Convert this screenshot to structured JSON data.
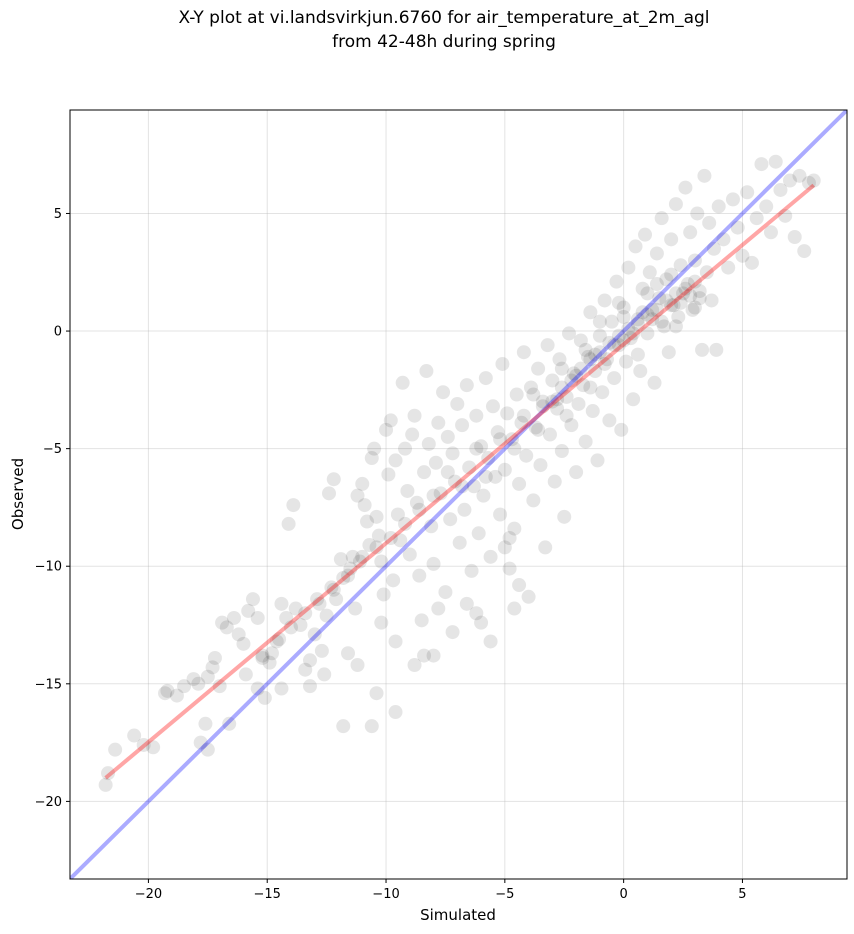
{
  "title_line1": "X-Y plot at vi.landsvirkjun.6760 for air_temperature_at_2m_agl",
  "title_line2": "from 42-48h during spring",
  "chart_data": {
    "type": "scatter",
    "title": "X-Y plot at vi.landsvirkjun.6760 for air_temperature_at_2m_agl from 42-48h during spring",
    "xlabel": "Simulated",
    "ylabel": "Observed",
    "xlim": [
      -23.3,
      9.4
    ],
    "ylim": [
      -23.3,
      9.4
    ],
    "xticks": [
      -20,
      -15,
      -10,
      -5,
      0,
      5
    ],
    "yticks": [
      -20,
      -15,
      -10,
      -5,
      0,
      5
    ],
    "tick_labels": [
      "−20",
      "−15",
      "−10",
      "−5",
      "0",
      "5"
    ],
    "grid": true,
    "point_color": "#000000",
    "point_alpha": 0.1,
    "reference_line": {
      "color": "#0000ff",
      "x": [
        -23.3,
        9.4
      ],
      "y": [
        -23.3,
        9.4
      ]
    },
    "fit_line": {
      "color": "#ff0000",
      "x": [
        -21.8,
        8.0
      ],
      "y": [
        -19.0,
        6.2
      ]
    },
    "points": [
      [
        -21.8,
        -19.3
      ],
      [
        -21.7,
        -18.8
      ],
      [
        -21.4,
        -17.8
      ],
      [
        -20.6,
        -17.2
      ],
      [
        -20.2,
        -17.6
      ],
      [
        -19.8,
        -17.7
      ],
      [
        -19.3,
        -15.4
      ],
      [
        -19.2,
        -15.3
      ],
      [
        -18.8,
        -15.5
      ],
      [
        -18.5,
        -15.1
      ],
      [
        -18.1,
        -14.8
      ],
      [
        -17.9,
        -15.0
      ],
      [
        -17.5,
        -14.7
      ],
      [
        -17.8,
        -17.5
      ],
      [
        -17.6,
        -16.7
      ],
      [
        -17.5,
        -17.8
      ],
      [
        -17.3,
        -14.3
      ],
      [
        -17.2,
        -13.9
      ],
      [
        -17.0,
        -15.1
      ],
      [
        -16.9,
        -12.4
      ],
      [
        -16.7,
        -12.6
      ],
      [
        -16.6,
        -16.7
      ],
      [
        -16.4,
        -12.2
      ],
      [
        -16.2,
        -12.9
      ],
      [
        -16.0,
        -13.3
      ],
      [
        -15.9,
        -14.6
      ],
      [
        -15.8,
        -11.9
      ],
      [
        -15.6,
        -11.4
      ],
      [
        -15.4,
        -12.2
      ],
      [
        -15.2,
        -13.9
      ],
      [
        -15.1,
        -15.6
      ],
      [
        -14.9,
        -14.1
      ],
      [
        -14.8,
        -13.7
      ],
      [
        -14.5,
        -13.1
      ],
      [
        -14.4,
        -11.6
      ],
      [
        -14.2,
        -12.2
      ],
      [
        -14.1,
        -8.2
      ],
      [
        -13.8,
        -11.8
      ],
      [
        -13.6,
        -12.5
      ],
      [
        -13.9,
        -7.4
      ],
      [
        -13.4,
        -14.4
      ],
      [
        -13.2,
        -15.1
      ],
      [
        -13.0,
        -12.9
      ],
      [
        -12.9,
        -11.4
      ],
      [
        -12.7,
        -13.6
      ],
      [
        -12.5,
        -12.1
      ],
      [
        -12.3,
        -10.9
      ],
      [
        -12.1,
        -11.4
      ],
      [
        -12.4,
        -6.9
      ],
      [
        -12.2,
        -6.3
      ],
      [
        -11.9,
        -9.7
      ],
      [
        -11.8,
        -10.5
      ],
      [
        -11.6,
        -13.7
      ],
      [
        -11.5,
        -10.1
      ],
      [
        -11.4,
        -9.6
      ],
      [
        -11.3,
        -11.8
      ],
      [
        -11.2,
        -7.0
      ],
      [
        -11.1,
        -9.8
      ],
      [
        -11.0,
        -6.5
      ],
      [
        -10.9,
        -7.4
      ],
      [
        -10.8,
        -8.1
      ],
      [
        -10.7,
        -9.1
      ],
      [
        -10.6,
        -5.4
      ],
      [
        -10.5,
        -5.0
      ],
      [
        -10.4,
        -7.9
      ],
      [
        -10.3,
        -8.7
      ],
      [
        -10.2,
        -9.8
      ],
      [
        -10.1,
        -11.2
      ],
      [
        -10.0,
        -4.2
      ],
      [
        -9.9,
        -6.1
      ],
      [
        -9.8,
        -3.8
      ],
      [
        -9.7,
        -10.6
      ],
      [
        -9.6,
        -5.5
      ],
      [
        -9.5,
        -7.8
      ],
      [
        -9.4,
        -8.9
      ],
      [
        -9.3,
        -2.2
      ],
      [
        -9.2,
        -5.0
      ],
      [
        -9.1,
        -6.8
      ],
      [
        -9.0,
        -9.5
      ],
      [
        -8.9,
        -4.4
      ],
      [
        -8.8,
        -3.6
      ],
      [
        -8.7,
        -7.3
      ],
      [
        -8.6,
        -10.4
      ],
      [
        -8.5,
        -12.3
      ],
      [
        -8.4,
        -6.0
      ],
      [
        -8.3,
        -1.7
      ],
      [
        -8.2,
        -4.8
      ],
      [
        -8.1,
        -8.3
      ],
      [
        -8.0,
        -9.9
      ],
      [
        -7.9,
        -5.6
      ],
      [
        -7.8,
        -3.9
      ],
      [
        -7.7,
        -6.9
      ],
      [
        -7.6,
        -2.6
      ],
      [
        -7.5,
        -11.1
      ],
      [
        -7.4,
        -4.5
      ],
      [
        -7.3,
        -8.0
      ],
      [
        -7.2,
        -5.2
      ],
      [
        -7.1,
        -6.4
      ],
      [
        -7.0,
        -3.1
      ],
      [
        -6.9,
        -9.0
      ],
      [
        -6.8,
        -4.0
      ],
      [
        -6.7,
        -7.6
      ],
      [
        -6.6,
        -2.3
      ],
      [
        -6.5,
        -5.8
      ],
      [
        -6.4,
        -10.2
      ],
      [
        -6.3,
        -6.6
      ],
      [
        -6.2,
        -3.6
      ],
      [
        -6.1,
        -8.6
      ],
      [
        -6.0,
        -4.9
      ],
      [
        -5.9,
        -7.0
      ],
      [
        -5.8,
        -2.0
      ],
      [
        -5.7,
        -5.4
      ],
      [
        -5.6,
        -9.6
      ],
      [
        -5.5,
        -3.2
      ],
      [
        -5.4,
        -6.2
      ],
      [
        -5.3,
        -4.3
      ],
      [
        -5.2,
        -7.8
      ],
      [
        -5.1,
        -1.4
      ],
      [
        -5.0,
        -5.9
      ],
      [
        -4.9,
        -3.5
      ],
      [
        -4.8,
        -10.1
      ],
      [
        -4.7,
        -4.6
      ],
      [
        -4.6,
        -8.4
      ],
      [
        -4.5,
        -2.7
      ],
      [
        -4.4,
        -6.5
      ],
      [
        -4.3,
        -3.9
      ],
      [
        -4.2,
        -0.9
      ],
      [
        -4.1,
        -5.3
      ],
      [
        -4.0,
        -11.3
      ],
      [
        -3.9,
        -2.4
      ],
      [
        -3.8,
        -7.2
      ],
      [
        -3.7,
        -4.1
      ],
      [
        -3.6,
        -1.6
      ],
      [
        -3.5,
        -5.7
      ],
      [
        -3.4,
        -3.0
      ],
      [
        -3.3,
        -9.2
      ],
      [
        -3.2,
        -0.6
      ],
      [
        -3.1,
        -4.4
      ],
      [
        -3.0,
        -2.1
      ],
      [
        -2.9,
        -6.4
      ],
      [
        -2.8,
        -3.3
      ],
      [
        -2.7,
        -1.2
      ],
      [
        -2.6,
        -5.1
      ],
      [
        -2.5,
        -7.9
      ],
      [
        -2.4,
        -2.8
      ],
      [
        -2.3,
        -0.1
      ],
      [
        -2.2,
        -4.0
      ],
      [
        -2.1,
        -1.8
      ],
      [
        -2.0,
        -6.0
      ],
      [
        -1.9,
        -3.1
      ],
      [
        -1.8,
        -0.4
      ],
      [
        -1.7,
        -2.3
      ],
      [
        -1.6,
        -4.7
      ],
      [
        -1.5,
        -1.1
      ],
      [
        -1.4,
        0.8
      ],
      [
        -1.3,
        -3.4
      ],
      [
        -1.2,
        -1.7
      ],
      [
        -1.1,
        -5.5
      ],
      [
        -1.0,
        -0.2
      ],
      [
        -0.9,
        -2.6
      ],
      [
        -0.8,
        1.3
      ],
      [
        -0.7,
        -1.2
      ],
      [
        -0.6,
        -3.8
      ],
      [
        -0.5,
        0.4
      ],
      [
        -0.4,
        -2.0
      ],
      [
        -0.3,
        2.1
      ],
      [
        -0.2,
        -0.6
      ],
      [
        -0.1,
        -4.2
      ],
      [
        0.0,
        1.0
      ],
      [
        0.1,
        -1.3
      ],
      [
        0.2,
        2.7
      ],
      [
        0.3,
        -0.3
      ],
      [
        0.4,
        -2.9
      ],
      [
        0.5,
        3.6
      ],
      [
        0.6,
        0.5
      ],
      [
        0.7,
        -1.7
      ],
      [
        0.8,
        1.8
      ],
      [
        0.9,
        4.1
      ],
      [
        1.0,
        -0.1
      ],
      [
        1.1,
        2.5
      ],
      [
        1.2,
        0.9
      ],
      [
        1.3,
        -2.2
      ],
      [
        1.4,
        3.3
      ],
      [
        1.5,
        1.4
      ],
      [
        1.6,
        4.8
      ],
      [
        1.7,
        0.2
      ],
      [
        1.8,
        2.2
      ],
      [
        1.9,
        -0.9
      ],
      [
        2.0,
        3.9
      ],
      [
        2.1,
        1.1
      ],
      [
        2.2,
        5.4
      ],
      [
        2.3,
        0.6
      ],
      [
        2.4,
        2.8
      ],
      [
        2.5,
        1.6
      ],
      [
        2.6,
        6.1
      ],
      [
        2.7,
        2.0
      ],
      [
        2.8,
        4.2
      ],
      [
        2.9,
        0.9
      ],
      [
        3.0,
        3.0
      ],
      [
        3.1,
        5.0
      ],
      [
        3.2,
        1.7
      ],
      [
        3.3,
        -0.8
      ],
      [
        3.4,
        6.6
      ],
      [
        3.5,
        2.5
      ],
      [
        3.6,
        4.6
      ],
      [
        3.7,
        1.3
      ],
      [
        3.8,
        3.5
      ],
      [
        3.9,
        -0.8
      ],
      [
        4.0,
        5.3
      ],
      [
        4.2,
        3.9
      ],
      [
        4.4,
        2.7
      ],
      [
        4.6,
        5.6
      ],
      [
        4.8,
        4.4
      ],
      [
        5.0,
        3.2
      ],
      [
        5.2,
        5.9
      ],
      [
        5.4,
        2.9
      ],
      [
        5.6,
        4.8
      ],
      [
        5.8,
        7.1
      ],
      [
        6.0,
        5.3
      ],
      [
        6.2,
        4.2
      ],
      [
        6.4,
        7.2
      ],
      [
        6.6,
        6.0
      ],
      [
        6.8,
        4.9
      ],
      [
        7.0,
        6.4
      ],
      [
        7.2,
        4.0
      ],
      [
        7.4,
        6.6
      ],
      [
        7.6,
        3.4
      ],
      [
        7.8,
        6.3
      ],
      [
        8.0,
        6.4
      ],
      [
        -3.0,
        -3.0
      ],
      [
        -2.6,
        -2.4
      ],
      [
        -2.2,
        -2.1
      ],
      [
        -1.8,
        -1.6
      ],
      [
        -1.4,
        -1.2
      ],
      [
        -1.0,
        -0.9
      ],
      [
        -0.6,
        -0.5
      ],
      [
        -0.2,
        -0.2
      ],
      [
        0.2,
        0.1
      ],
      [
        0.6,
        0.3
      ],
      [
        1.0,
        0.7
      ],
      [
        1.4,
        0.9
      ],
      [
        1.8,
        1.3
      ],
      [
        2.2,
        1.6
      ],
      [
        2.6,
        1.8
      ],
      [
        3.0,
        2.1
      ],
      [
        -3.4,
        -3.2
      ],
      [
        -2.8,
        -2.9
      ],
      [
        -2.0,
        -1.9
      ],
      [
        -1.2,
        -1.0
      ],
      [
        -0.4,
        -0.6
      ],
      [
        0.4,
        -0.1
      ],
      [
        1.2,
        0.5
      ],
      [
        2.0,
        1.1
      ],
      [
        2.8,
        1.5
      ],
      [
        -1.6,
        -0.8
      ],
      [
        -0.8,
        -1.4
      ],
      [
        0.0,
        -0.4
      ],
      [
        0.8,
        0.8
      ],
      [
        1.6,
        0.4
      ],
      [
        2.4,
        1.2
      ],
      [
        3.2,
        1.4
      ],
      [
        -4.2,
        -3.6
      ],
      [
        -3.8,
        -2.7
      ],
      [
        -3.6,
        -4.2
      ],
      [
        -2.4,
        -3.6
      ],
      [
        -1.0,
        0.4
      ],
      [
        0.0,
        0.6
      ],
      [
        1.0,
        1.6
      ],
      [
        2.0,
        2.4
      ],
      [
        3.0,
        1.0
      ],
      [
        -0.2,
        1.2
      ],
      [
        0.6,
        -1.0
      ],
      [
        1.4,
        2.0
      ],
      [
        2.2,
        0.2
      ],
      [
        -1.4,
        -2.4
      ],
      [
        -2.6,
        -1.6
      ],
      [
        -4.6,
        -5.0
      ],
      [
        -5.2,
        -4.6
      ],
      [
        -5.8,
        -6.2
      ],
      [
        -6.2,
        -5.0
      ],
      [
        -6.8,
        -6.6
      ],
      [
        -7.4,
        -6.0
      ],
      [
        -8.0,
        -7.0
      ],
      [
        -8.6,
        -7.6
      ],
      [
        -9.2,
        -8.2
      ],
      [
        -9.8,
        -8.8
      ],
      [
        -10.4,
        -9.2
      ],
      [
        -11.0,
        -9.6
      ],
      [
        -11.6,
        -10.4
      ],
      [
        -12.2,
        -11.0
      ],
      [
        -12.8,
        -11.6
      ],
      [
        -13.4,
        -12.0
      ],
      [
        -14.0,
        -12.6
      ],
      [
        -14.6,
        -13.2
      ],
      [
        -15.2,
        -13.8
      ],
      [
        -4.8,
        -8.8
      ],
      [
        -5.0,
        -9.2
      ],
      [
        -4.4,
        -10.8
      ],
      [
        -4.6,
        -11.8
      ],
      [
        -6.0,
        -12.4
      ],
      [
        -6.6,
        -11.6
      ],
      [
        -7.2,
        -12.8
      ],
      [
        -7.8,
        -11.8
      ],
      [
        -8.4,
        -13.8
      ],
      [
        -8.8,
        -14.2
      ],
      [
        -9.6,
        -13.2
      ],
      [
        -10.2,
        -12.4
      ],
      [
        -11.2,
        -14.2
      ],
      [
        -11.8,
        -16.8
      ],
      [
        -10.6,
        -16.8
      ],
      [
        -9.6,
        -16.2
      ],
      [
        -10.4,
        -15.4
      ],
      [
        -12.6,
        -14.6
      ],
      [
        -13.2,
        -14.0
      ],
      [
        -14.4,
        -15.2
      ],
      [
        -15.4,
        -15.2
      ],
      [
        -5.6,
        -13.2
      ],
      [
        -6.2,
        -12.0
      ],
      [
        -8.0,
        -13.8
      ]
    ]
  }
}
